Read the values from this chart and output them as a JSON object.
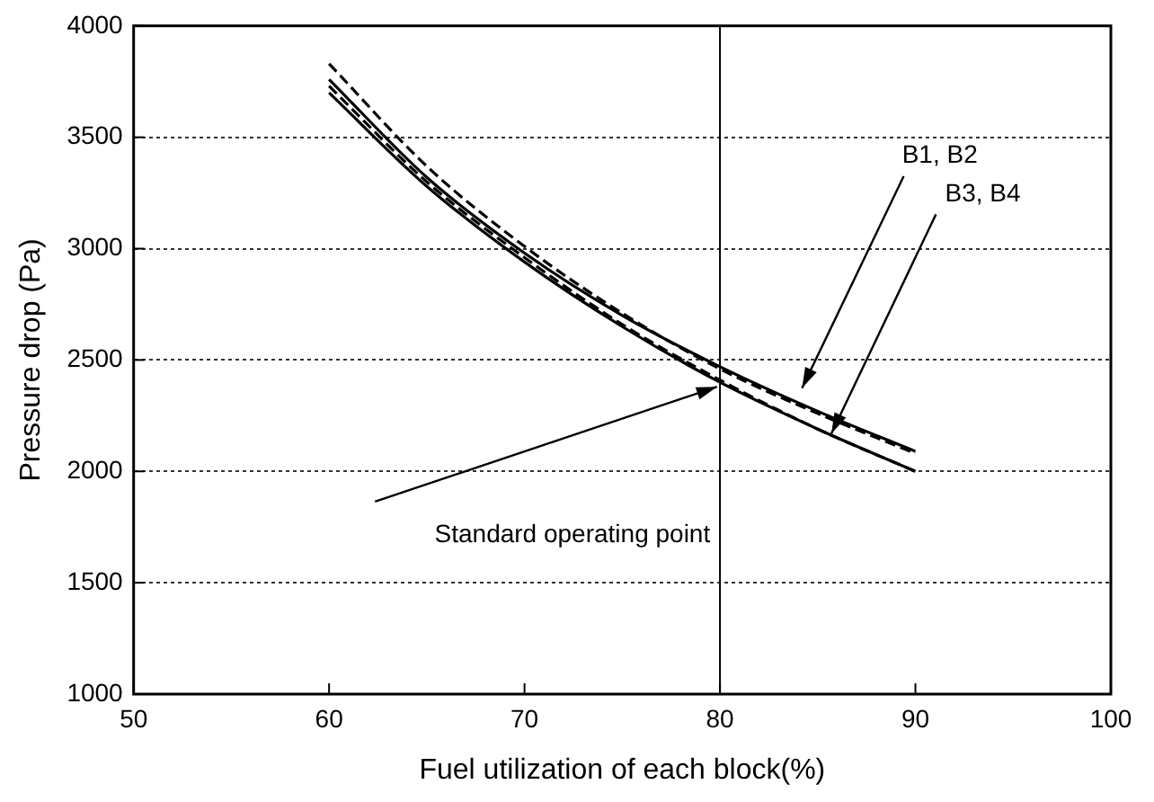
{
  "chart_data": {
    "type": "line",
    "xlabel": "Fuel utilization of each block(%)",
    "ylabel": "Pressure drop (Pa)",
    "x": [
      60,
      65,
      70,
      75,
      80,
      85,
      90
    ],
    "series": [
      {
        "color": "#000000",
        "line_style": "solid",
        "values": [
          3760,
          3320,
          2980,
          2700,
          2470,
          2270,
          2090
        ]
      },
      {
        "color": "#000000",
        "line_style": "dashed",
        "values": [
          3830,
          3370,
          3010,
          2710,
          2460,
          2260,
          2080
        ]
      },
      {
        "color": "#000000",
        "line_style": "solid",
        "values": [
          3700,
          3280,
          2940,
          2650,
          2400,
          2190,
          2000
        ]
      },
      {
        "color": "#000000",
        "line_style": "dashed",
        "values": [
          3730,
          3300,
          2960,
          2660,
          2410,
          2190,
          2000
        ]
      }
    ],
    "xlim": [
      50,
      100
    ],
    "xticks": [
      50,
      60,
      70,
      80,
      90,
      100
    ],
    "ylim": [
      1000,
      4000
    ],
    "yticks": [
      1000,
      1500,
      2000,
      2500,
      3000,
      3500,
      4000
    ],
    "grid": "y",
    "legend": false,
    "marker": "none",
    "ref_lines": [
      {
        "axis": "x",
        "value": 80
      }
    ],
    "annotations": [
      "B1, B2",
      {
        "text": "B3, B4",
        "x": 85.7,
        "y": 2170
      },
      "Standard operating point"
    ]
  }
}
